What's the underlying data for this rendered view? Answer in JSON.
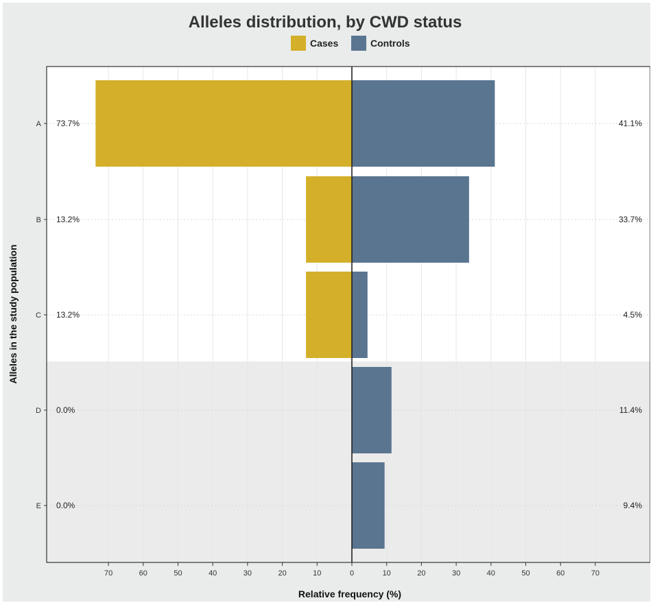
{
  "chart_data": {
    "type": "bar",
    "orientation": "horizontal-diverging",
    "title": "Alleles distribution, by CWD status",
    "xlabel": "Relative frequency (%)",
    "ylabel": "Alleles in the study population",
    "categories": [
      "A",
      "B",
      "C",
      "D",
      "E"
    ],
    "series": [
      {
        "name": "Cases",
        "color": "#d4b02a",
        "direction": "left",
        "values": [
          73.7,
          13.2,
          13.2,
          0.0,
          0.0
        ],
        "labels": [
          "73.7%",
          "13.2%",
          "13.2%",
          "0.0%",
          "0.0%"
        ]
      },
      {
        "name": "Controls",
        "color": "#5a7590",
        "direction": "right",
        "values": [
          41.1,
          33.7,
          4.5,
          11.4,
          9.4
        ],
        "labels": [
          "41.1%",
          "33.7%",
          "4.5%",
          "11.4%",
          "9.4%"
        ]
      }
    ],
    "xticks": [
      "70",
      "60",
      "50",
      "40",
      "30",
      "20",
      "10",
      "0",
      "10",
      "20",
      "30",
      "40",
      "50",
      "60",
      "70"
    ],
    "xlim": [
      -80,
      80
    ],
    "grid": true,
    "legend_position": "top",
    "shaded_categories": [
      "D",
      "E"
    ],
    "colors": {
      "background": "#e9eceb",
      "panel": "#ffffff",
      "shaded_panel": "#ebebeb"
    }
  }
}
